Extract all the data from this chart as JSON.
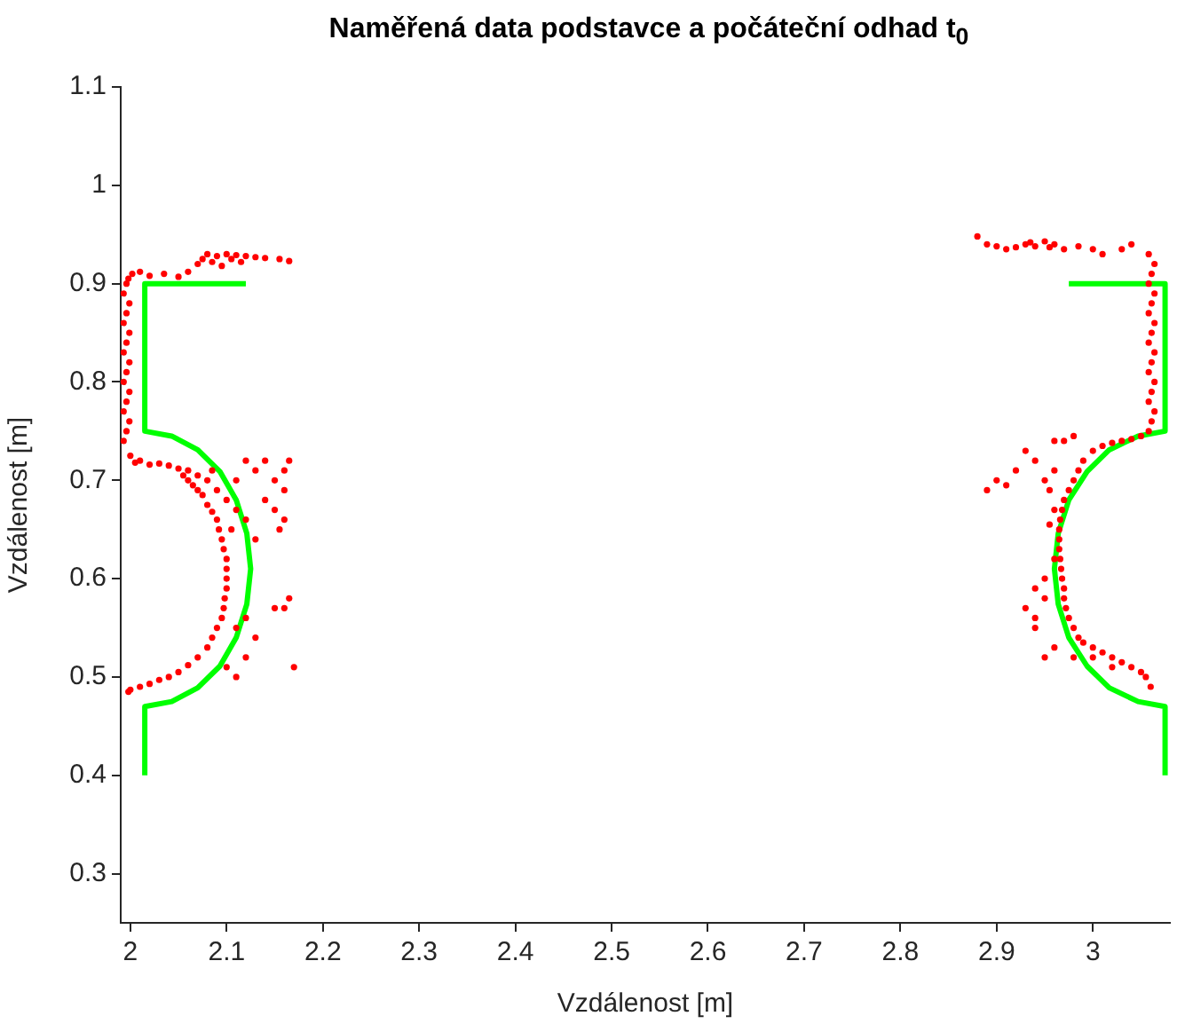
{
  "chart_data": {
    "type": "scatter",
    "title": "Naměřená data podstavce a počáteční odhad t$_{0}$",
    "xlabel": "Vzdálenost [m]",
    "ylabel": "Vzdálenost [m]",
    "xlim": [
      1.99,
      3.08
    ],
    "ylim": [
      0.25,
      1.1
    ],
    "xticks": [
      2,
      2.1,
      2.2,
      2.3,
      2.4,
      2.5,
      2.6,
      2.7,
      2.8,
      2.9,
      3
    ],
    "yticks": [
      0.3,
      0.4,
      0.5,
      0.6,
      0.7,
      0.8,
      0.9,
      1,
      1.1
    ],
    "grid": false,
    "legend": false,
    "marker": "circle",
    "series": [
      {
        "type": "scatter",
        "color": "#ff0000",
        "x": [
          1.993,
          1.996,
          1.999,
          1.993,
          1.996,
          1.999,
          1.993,
          1.996,
          1.999,
          1.993,
          1.996,
          1.999,
          1.993,
          1.996,
          1.999,
          1.993,
          1.996,
          1.998,
          2.002,
          2.01,
          2.02,
          2.035,
          2.05,
          2.06,
          2.07,
          2.075,
          2.08,
          2.085,
          2.09,
          2.095,
          2.1,
          2.105,
          2.11,
          2.115,
          2.12,
          2.13,
          2.14,
          2.155,
          2.165,
          2.0,
          2.005,
          2.01,
          2.02,
          2.03,
          2.04,
          2.05,
          2.055,
          2.06,
          2.065,
          2.07,
          2.075,
          2.08,
          2.085,
          2.09,
          2.092,
          2.095,
          2.097,
          2.1,
          2.1,
          2.1,
          2.1,
          2.098,
          2.097,
          2.095,
          2.09,
          2.085,
          2.08,
          2.07,
          2.06,
          2.05,
          2.04,
          2.03,
          2.02,
          2.01,
          2.0,
          1.998,
          2.06,
          2.07,
          2.08,
          2.09,
          2.085,
          2.1,
          2.11,
          2.105,
          2.12,
          2.11,
          2.12,
          2.13,
          2.14,
          2.15,
          2.16,
          2.165,
          2.16,
          2.15,
          2.155,
          2.14,
          2.13,
          2.15,
          2.16,
          2.12,
          2.11,
          2.13,
          2.12,
          2.11,
          2.1,
          2.17,
          2.165,
          2.16,
          3.058,
          3.061,
          3.064,
          3.058,
          3.061,
          3.064,
          3.058,
          3.061,
          3.064,
          3.058,
          3.061,
          3.064,
          3.058,
          3.061,
          3.064,
          3.058,
          3.061,
          3.064,
          3.058,
          2.88,
          2.89,
          2.9,
          2.91,
          2.92,
          2.93,
          2.935,
          2.94,
          2.95,
          2.955,
          2.96,
          2.97,
          2.985,
          3.0,
          3.01,
          3.03,
          3.04,
          3.05,
          3.04,
          3.03,
          3.02,
          3.01,
          3.0,
          2.99,
          2.985,
          2.98,
          2.975,
          2.97,
          2.968,
          2.966,
          2.965,
          2.965,
          2.965,
          2.966,
          2.967,
          2.968,
          2.97,
          2.97,
          2.972,
          2.975,
          2.98,
          2.985,
          2.99,
          3.0,
          3.01,
          3.02,
          3.03,
          3.04,
          3.05,
          3.055,
          3.06,
          2.89,
          2.9,
          2.91,
          2.92,
          2.93,
          2.94,
          2.96,
          2.97,
          2.98,
          2.95,
          2.955,
          2.96,
          2.96,
          2.955,
          2.96,
          2.95,
          2.95,
          2.93,
          2.94,
          2.94,
          2.96,
          2.95,
          2.98,
          3.0,
          3.02,
          2.94
        ],
        "values": [
          0.74,
          0.75,
          0.76,
          0.77,
          0.78,
          0.79,
          0.8,
          0.81,
          0.82,
          0.83,
          0.84,
          0.85,
          0.86,
          0.87,
          0.88,
          0.89,
          0.9,
          0.905,
          0.91,
          0.912,
          0.908,
          0.91,
          0.907,
          0.912,
          0.92,
          0.925,
          0.93,
          0.922,
          0.928,
          0.918,
          0.93,
          0.925,
          0.929,
          0.922,
          0.928,
          0.927,
          0.926,
          0.925,
          0.923,
          0.725,
          0.718,
          0.72,
          0.716,
          0.717,
          0.715,
          0.712,
          0.705,
          0.7,
          0.695,
          0.69,
          0.685,
          0.675,
          0.668,
          0.66,
          0.65,
          0.64,
          0.63,
          0.62,
          0.61,
          0.6,
          0.59,
          0.58,
          0.57,
          0.56,
          0.55,
          0.54,
          0.53,
          0.52,
          0.512,
          0.505,
          0.5,
          0.497,
          0.493,
          0.49,
          0.487,
          0.485,
          0.71,
          0.705,
          0.7,
          0.69,
          0.71,
          0.68,
          0.67,
          0.65,
          0.66,
          0.7,
          0.72,
          0.71,
          0.72,
          0.7,
          0.71,
          0.72,
          0.66,
          0.67,
          0.65,
          0.68,
          0.64,
          0.57,
          0.57,
          0.56,
          0.55,
          0.54,
          0.52,
          0.5,
          0.51,
          0.51,
          0.58,
          0.69,
          0.75,
          0.76,
          0.77,
          0.78,
          0.79,
          0.8,
          0.81,
          0.82,
          0.83,
          0.84,
          0.85,
          0.86,
          0.87,
          0.88,
          0.89,
          0.9,
          0.91,
          0.92,
          0.93,
          0.948,
          0.94,
          0.938,
          0.935,
          0.937,
          0.94,
          0.942,
          0.938,
          0.943,
          0.937,
          0.94,
          0.935,
          0.938,
          0.935,
          0.93,
          0.935,
          0.94,
          0.745,
          0.742,
          0.74,
          0.738,
          0.735,
          0.73,
          0.72,
          0.71,
          0.7,
          0.69,
          0.68,
          0.67,
          0.66,
          0.65,
          0.64,
          0.63,
          0.62,
          0.61,
          0.6,
          0.59,
          0.58,
          0.57,
          0.56,
          0.55,
          0.54,
          0.535,
          0.53,
          0.525,
          0.52,
          0.515,
          0.51,
          0.505,
          0.5,
          0.49,
          0.69,
          0.7,
          0.695,
          0.71,
          0.73,
          0.72,
          0.74,
          0.74,
          0.745,
          0.7,
          0.69,
          0.71,
          0.67,
          0.655,
          0.62,
          0.6,
          0.58,
          0.57,
          0.56,
          0.55,
          0.53,
          0.52,
          0.52,
          0.52,
          0.51,
          0.59
        ]
      },
      {
        "type": "line",
        "color": "#00ff00",
        "marker": "none",
        "x": [
          2.015,
          2.015,
          2.043,
          2.07,
          2.093,
          2.11,
          2.121,
          2.125,
          2.121,
          2.11,
          2.093,
          2.07,
          2.043,
          2.015,
          2.015,
          2.12,
          2.5,
          3.075,
          3.075,
          3.047,
          3.017,
          2.994,
          2.975,
          2.964,
          2.96,
          2.964,
          2.975,
          2.994,
          3.017,
          3.047,
          3.075,
          3.075,
          2.975
        ],
        "values": [
          0.4,
          0.47,
          0.475,
          0.489,
          0.511,
          0.54,
          0.574,
          0.61,
          0.646,
          0.68,
          0.709,
          0.731,
          0.745,
          0.75,
          0.9,
          0.9,
          null,
          0.4,
          0.47,
          0.475,
          0.489,
          0.511,
          0.54,
          0.574,
          0.61,
          0.646,
          0.68,
          0.709,
          0.731,
          0.745,
          0.75,
          0.9,
          0.9
        ]
      }
    ]
  }
}
